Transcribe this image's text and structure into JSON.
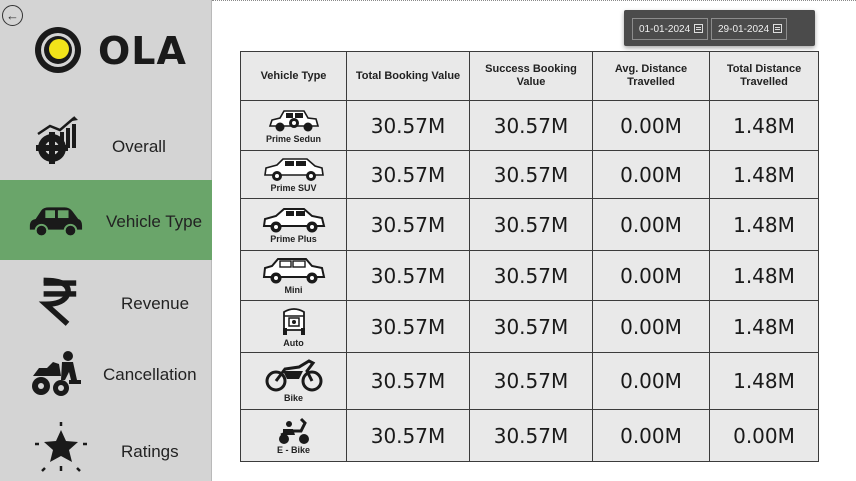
{
  "brand": {
    "logo_text": "OLA",
    "logo_dot_color": "#f2e41a"
  },
  "sidebar": {
    "back_icon": "back-arrow-icon",
    "active_color": "#6aa56a",
    "items": [
      {
        "label": "Overall",
        "icon": "chart-gear-icon"
      },
      {
        "label": "Vehicle Type",
        "icon": "car-icon"
      },
      {
        "label": "Revenue",
        "icon": "rupee-icon"
      },
      {
        "label": "Cancellation",
        "icon": "atv-driver-icon"
      },
      {
        "label": "Ratings",
        "icon": "star-burst-icon"
      }
    ]
  },
  "date_slicer": {
    "start": "01-01-2024",
    "end": "29-01-2024",
    "icon": "calendar-icon"
  },
  "table": {
    "headers": [
      "Vehicle Type",
      "Total Booking Value",
      "Success Booking Value",
      "Avg. Distance Travelled",
      "Total Distance Travelled"
    ],
    "rows": [
      {
        "vehicle": "Prime Sedun",
        "icon": "sedan-icon",
        "total_booking": "30.57M",
        "success_booking": "30.57M",
        "avg_distance": "0.00M",
        "total_distance": "1.48M"
      },
      {
        "vehicle": "Prime SUV",
        "icon": "suv-icon",
        "total_booking": "30.57M",
        "success_booking": "30.57M",
        "avg_distance": "0.00M",
        "total_distance": "1.48M"
      },
      {
        "vehicle": "Prime Plus",
        "icon": "car-plus-icon",
        "total_booking": "30.57M",
        "success_booking": "30.57M",
        "avg_distance": "0.00M",
        "total_distance": "1.48M"
      },
      {
        "vehicle": "Mini",
        "icon": "mini-car-icon",
        "total_booking": "30.57M",
        "success_booking": "30.57M",
        "avg_distance": "0.00M",
        "total_distance": "1.48M"
      },
      {
        "vehicle": "Auto",
        "icon": "auto-rickshaw-icon",
        "total_booking": "30.57M",
        "success_booking": "30.57M",
        "avg_distance": "0.00M",
        "total_distance": "1.48M"
      },
      {
        "vehicle": "Bike",
        "icon": "motorbike-icon",
        "total_booking": "30.57M",
        "success_booking": "30.57M",
        "avg_distance": "0.00M",
        "total_distance": "1.48M"
      },
      {
        "vehicle": "E - Bike",
        "icon": "scooter-icon",
        "total_booking": "30.57M",
        "success_booking": "30.57M",
        "avg_distance": "0.00M",
        "total_distance": "0.00M"
      }
    ]
  }
}
